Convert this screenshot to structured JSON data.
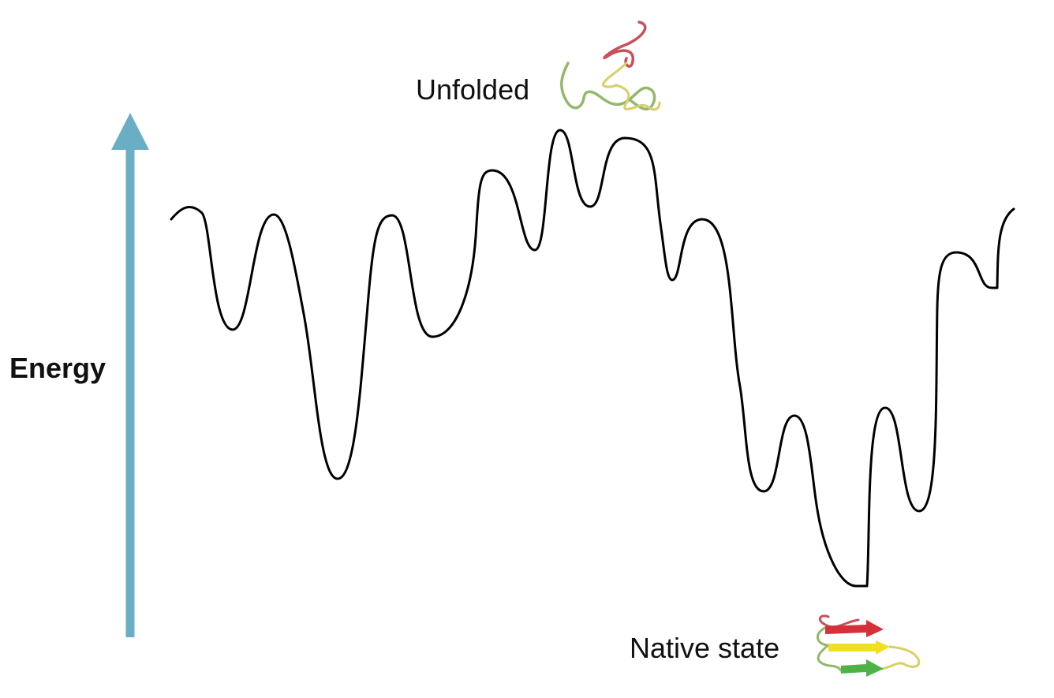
{
  "labels": {
    "energy": "Energy",
    "unfolded": "Unfolded",
    "native": "Native state"
  },
  "colors": {
    "background": "#ffffff",
    "arrow": "#6aaec6",
    "curve": "#000000",
    "text": "#111111",
    "strand_red": "#d6303a",
    "strand_yellow": "#f0e020",
    "strand_green": "#4fb247",
    "coil_green": "#93b86a",
    "coil_red": "#c9505a",
    "coil_yellow": "#d8cf66"
  },
  "icons": {
    "unfolded": "unfolded-protein-coil-icon",
    "native": "folded-beta-sheet-protein-icon"
  }
}
